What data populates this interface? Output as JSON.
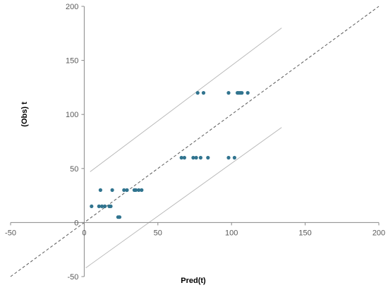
{
  "chart_data": {
    "type": "scatter",
    "title": "",
    "xlabel": "Pred(t)",
    "ylabel": "(Obs) t",
    "xlim": [
      -50,
      200
    ],
    "ylim": [
      -50,
      200
    ],
    "xticks": [
      -50,
      0,
      50,
      100,
      150,
      200
    ],
    "yticks": [
      -50,
      0,
      50,
      100,
      150,
      200
    ],
    "xtick_labels": [
      "-50",
      "0",
      "50",
      "100",
      "150",
      "200"
    ],
    "ytick_labels": [
      "-50",
      "0",
      "50",
      "100",
      "150",
      "200"
    ],
    "grid": false,
    "legend": "none",
    "series": [
      {
        "marker_color": "#31748f",
        "points": [
          [
            5,
            15
          ],
          [
            10,
            15
          ],
          [
            11,
            30
          ],
          [
            12,
            15
          ],
          [
            14,
            15
          ],
          [
            17,
            15
          ],
          [
            18,
            15
          ],
          [
            19,
            30
          ],
          [
            23,
            5
          ],
          [
            24,
            5
          ],
          [
            27,
            30
          ],
          [
            29,
            30
          ],
          [
            34,
            30
          ],
          [
            35,
            30
          ],
          [
            37,
            30
          ],
          [
            39,
            30
          ],
          [
            66,
            60
          ],
          [
            68,
            60
          ],
          [
            74,
            60
          ],
          [
            76,
            60
          ],
          [
            79,
            60
          ],
          [
            84,
            60
          ],
          [
            98,
            60
          ],
          [
            102,
            60
          ],
          [
            77,
            120
          ],
          [
            81,
            120
          ],
          [
            98,
            120
          ],
          [
            104,
            120
          ],
          [
            105,
            120
          ],
          [
            106,
            120
          ],
          [
            107,
            120
          ],
          [
            111,
            120
          ]
        ]
      }
    ],
    "reference_lines": [
      {
        "role": "identity",
        "style": "dashed",
        "color": "#595959",
        "from": [
          -50,
          -50
        ],
        "to": [
          200,
          200
        ]
      },
      {
        "role": "upper-bound",
        "style": "solid",
        "color": "#b4b4b4",
        "from": [
          4,
          47
        ],
        "to": [
          134,
          180
        ]
      },
      {
        "role": "lower-bound",
        "style": "solid",
        "color": "#b4b4b4",
        "from": [
          1,
          -42
        ],
        "to": [
          134,
          88
        ]
      }
    ]
  }
}
